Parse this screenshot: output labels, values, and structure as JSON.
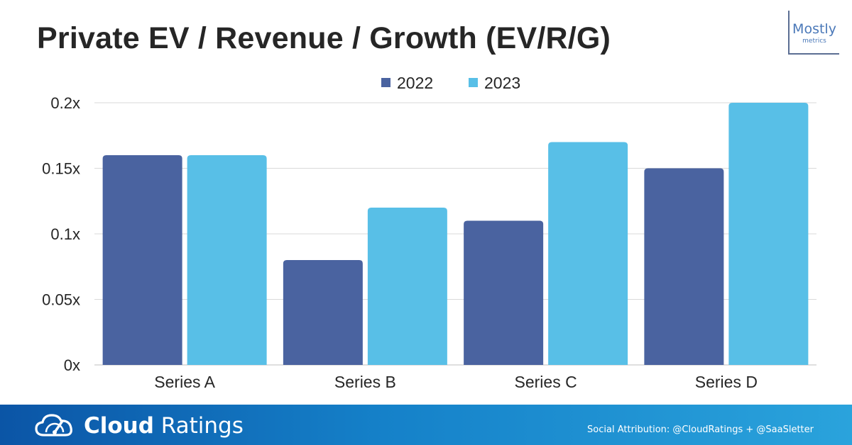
{
  "header": {
    "title": "Private EV / Revenue / Growth (EV/R/G)",
    "logo_main": "Mostly",
    "logo_sub": "metrics"
  },
  "chart_data": {
    "type": "bar",
    "title": "Private EV / Revenue / Growth (EV/R/G)",
    "xlabel": "",
    "ylabel": "",
    "categories": [
      "Series A",
      "Series B",
      "Series C",
      "Series D"
    ],
    "series": [
      {
        "name": "2022",
        "values": [
          0.16,
          0.08,
          0.11,
          0.15
        ],
        "color": "#4a63a0"
      },
      {
        "name": "2023",
        "values": [
          0.16,
          0.12,
          0.17,
          0.2
        ],
        "color": "#58bfe7"
      }
    ],
    "ylim": [
      0,
      0.2
    ],
    "yticks": [
      0,
      0.05,
      0.1,
      0.15,
      0.2
    ],
    "ytick_labels": [
      "0x",
      "0.05x",
      "0.1x",
      "0.15x",
      "0.2x"
    ],
    "grid": true,
    "legend_position": "top-center"
  },
  "footer": {
    "brand_bold": "Cloud",
    "brand_light": " Ratings",
    "attribution": "Social Attribution: @CloudRatings + @SaaSletter"
  },
  "colors": {
    "title": "#262626",
    "grid": "#d9d9d9",
    "axis": "#bfbfbf",
    "footer_start": "#0b55a6",
    "footer_end": "#2aa3dc"
  }
}
